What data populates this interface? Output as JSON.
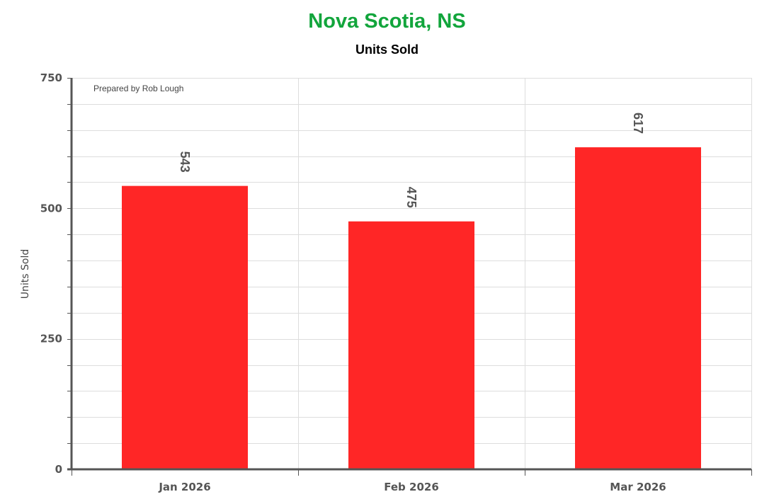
{
  "chart_data": {
    "type": "bar",
    "title": "Nova Scotia, NS",
    "subtitle": "Units Sold",
    "credit": "Prepared by Rob Lough",
    "ylabel": "Units Sold",
    "xlabel": "",
    "categories": [
      "Jan 2026",
      "Feb 2026",
      "Mar 2026"
    ],
    "values": [
      543,
      475,
      617
    ],
    "ylim": [
      0,
      750
    ],
    "yticks": [
      0,
      250,
      500,
      750
    ],
    "grid": true,
    "data_labels": true,
    "colors": {
      "title": "#12a53c",
      "bar": "#ff2626",
      "grid": "#dddddd",
      "axis": "#555555"
    }
  }
}
